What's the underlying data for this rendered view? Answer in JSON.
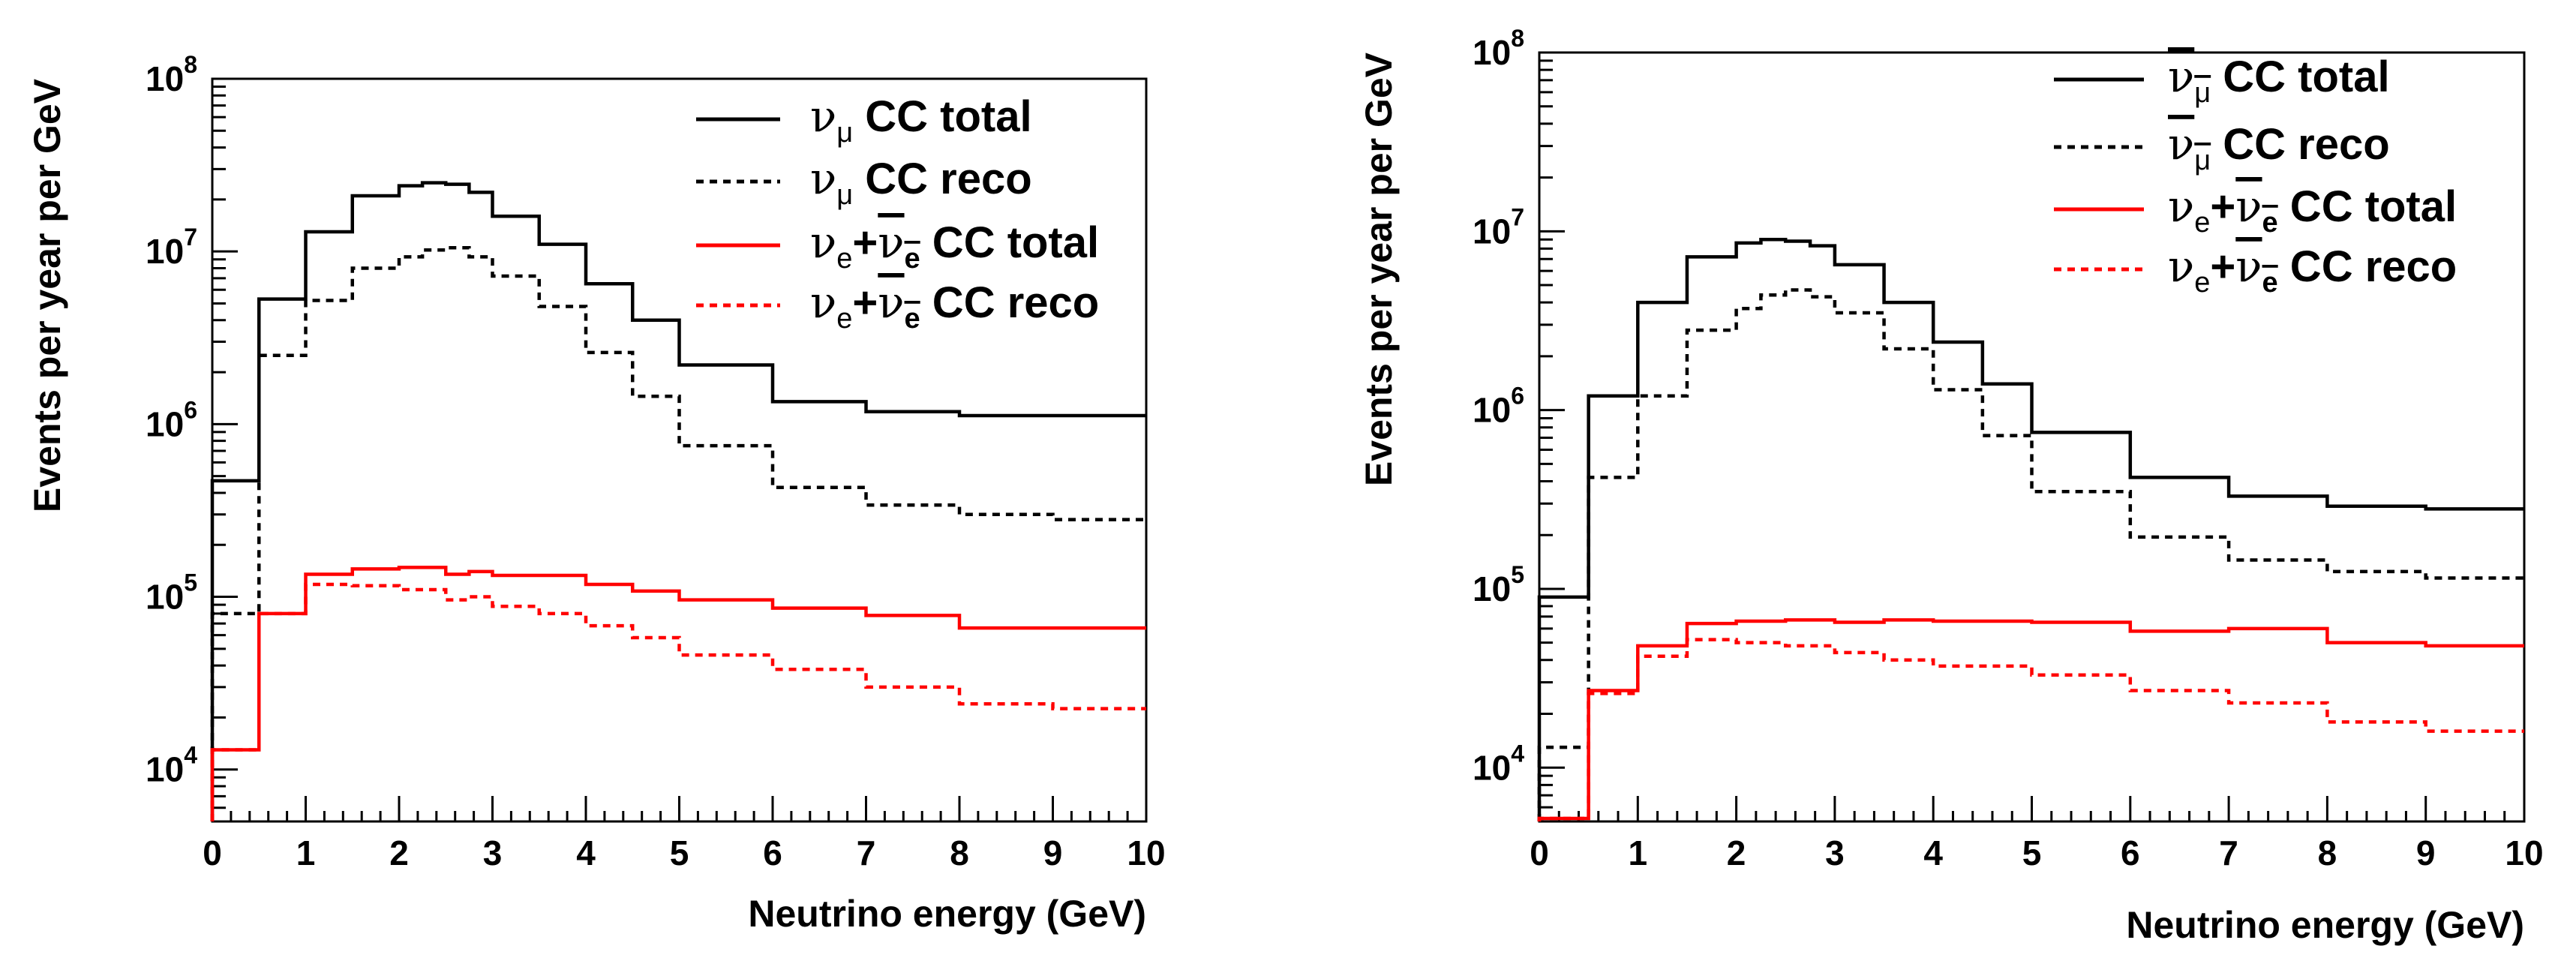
{
  "chart_data": [
    {
      "type": "line",
      "step": true,
      "title": "",
      "xlabel": "Neutrino energy (GeV)",
      "ylabel": "Events per year per GeV",
      "xlim": [
        0,
        10
      ],
      "ylim": [
        5000,
        100000000
      ],
      "yscale": "log",
      "x_ticks": [
        "0",
        "1",
        "2",
        "3",
        "4",
        "5",
        "6",
        "7",
        "8",
        "9",
        "10"
      ],
      "y_ticks": [
        {
          "base": "10",
          "exp": "4",
          "value": 10000
        },
        {
          "base": "10",
          "exp": "5",
          "value": 100000
        },
        {
          "base": "10",
          "exp": "6",
          "value": 1000000
        },
        {
          "base": "10",
          "exp": "7",
          "value": 10000000
        },
        {
          "base": "10",
          "exp": "8",
          "value": 100000000
        }
      ],
      "legend_position": "top-right",
      "series": [
        {
          "legend": {
            "sym": "ν",
            "sub": "μ",
            "rest": " CC total"
          },
          "color": "#000000",
          "dash": false,
          "edges": [
            0,
            0.5,
            1,
            1.5,
            2,
            2.25,
            2.5,
            2.75,
            3,
            3.5,
            4,
            4.5,
            5,
            6,
            7,
            8,
            10
          ],
          "values": [
            470000,
            5300000,
            13000000,
            21000000,
            24000000,
            25000000,
            24500000,
            22000000,
            16000000,
            11000000,
            6500000,
            4000000,
            2200000,
            1350000,
            1180000,
            1120000
          ]
        },
        {
          "legend": {
            "sym": "ν",
            "sub": "μ",
            "rest": " CC reco"
          },
          "color": "#000000",
          "dash": true,
          "edges": [
            0,
            0.5,
            1,
            1.5,
            2,
            2.25,
            2.5,
            2.75,
            3,
            3.5,
            4,
            4.5,
            5,
            6,
            7,
            8,
            9,
            10
          ],
          "values": [
            80000,
            2500000,
            5200000,
            8000000,
            9300000,
            10200000,
            10500000,
            9300000,
            7200000,
            4800000,
            2600000,
            1450000,
            750000,
            430000,
            340000,
            300000,
            280000
          ]
        },
        {
          "legend": {
            "sym": "ν",
            "sub": "e",
            "plus": "+",
            "sym2": "ν",
            "sub2": "e",
            "rest": " CC total"
          },
          "color": "#ff0000",
          "dash": false,
          "edges": [
            0,
            0.5,
            1,
            1.5,
            2,
            2.5,
            2.75,
            3,
            3.5,
            4,
            4.5,
            5,
            6,
            7,
            8,
            10
          ],
          "values": [
            13000,
            80000,
            135000,
            145000,
            148000,
            135000,
            140000,
            133000,
            133000,
            118000,
            108000,
            96000,
            86000,
            78000,
            66000
          ]
        },
        {
          "legend": {
            "sym": "ν",
            "sub": "e",
            "plus": "+",
            "sym2": "ν",
            "sub2": "e",
            "rest": " CC reco"
          },
          "color": "#ff0000",
          "dash": true,
          "edges": [
            0,
            0.5,
            1,
            1.5,
            2,
            2.5,
            2.75,
            3,
            3.5,
            4,
            4.5,
            5,
            6,
            7,
            8,
            9,
            10
          ],
          "values": [
            13000,
            80000,
            118000,
            116000,
            110000,
            96000,
            100000,
            88000,
            80000,
            68000,
            58000,
            46000,
            38000,
            30000,
            24000,
            22500
          ]
        }
      ]
    },
    {
      "type": "line",
      "step": true,
      "title": "",
      "xlabel": "Neutrino energy (GeV)",
      "ylabel": "Events per year per GeV",
      "xlim": [
        0,
        10
      ],
      "ylim": [
        5000,
        100000000
      ],
      "yscale": "log",
      "x_ticks": [
        "0",
        "1",
        "2",
        "3",
        "4",
        "5",
        "6",
        "7",
        "8",
        "9",
        "10"
      ],
      "y_ticks": [
        {
          "base": "10",
          "exp": "4",
          "value": 10000
        },
        {
          "base": "10",
          "exp": "5",
          "value": 100000
        },
        {
          "base": "10",
          "exp": "6",
          "value": 1000000
        },
        {
          "base": "10",
          "exp": "7",
          "value": 10000000
        },
        {
          "base": "10",
          "exp": "8",
          "value": 100000000
        }
      ],
      "legend_position": "top-right",
      "series": [
        {
          "legend": {
            "sym": "ν",
            "sub": "μ",
            "bar": true,
            "rest": " CC total"
          },
          "color": "#000000",
          "dash": false,
          "edges": [
            0,
            0.5,
            1,
            1.5,
            2,
            2.25,
            2.5,
            2.75,
            3,
            3.5,
            4,
            4.5,
            5,
            6,
            7,
            8,
            9,
            10
          ],
          "values": [
            90000,
            1200000,
            4000000,
            7200000,
            8600000,
            9000000,
            8800000,
            8300000,
            6500000,
            4000000,
            2400000,
            1400000,
            750000,
            420000,
            330000,
            290000,
            280000
          ]
        },
        {
          "legend": {
            "sym": "ν",
            "sub": "μ",
            "bar": true,
            "rest": " CC reco"
          },
          "color": "#000000",
          "dash": true,
          "edges": [
            0,
            0.5,
            1,
            1.5,
            2,
            2.25,
            2.5,
            2.75,
            3,
            3.5,
            4,
            4.5,
            5,
            6,
            7,
            8,
            9,
            10
          ],
          "values": [
            13000,
            420000,
            1200000,
            2800000,
            3700000,
            4400000,
            4700000,
            4300000,
            3500000,
            2200000,
            1300000,
            720000,
            350000,
            195000,
            145000,
            125000,
            115000
          ]
        },
        {
          "legend": {
            "sym": "ν",
            "sub": "e",
            "plus": "+",
            "sym2": "ν",
            "sub2": "e",
            "rest": " CC total"
          },
          "color": "#ff0000",
          "dash": false,
          "edges": [
            0,
            0.5,
            1,
            1.5,
            2,
            2.5,
            3,
            3.5,
            4,
            5,
            6,
            7,
            8,
            9,
            10
          ],
          "values": [
            5200,
            27000,
            48000,
            64000,
            66000,
            67000,
            65000,
            67000,
            66000,
            65000,
            58000,
            60000,
            50000,
            48000
          ]
        },
        {
          "legend": {
            "sym": "ν",
            "sub": "e",
            "plus": "+",
            "sym2": "ν",
            "sub2": "e",
            "rest": " CC reco"
          },
          "color": "#ff0000",
          "dash": true,
          "edges": [
            0,
            0.5,
            1,
            1.5,
            2,
            2.5,
            3,
            3.5,
            4,
            5,
            6,
            7,
            8,
            9,
            10
          ],
          "values": [
            5200,
            26000,
            42000,
            52000,
            50000,
            48000,
            44000,
            40000,
            37000,
            33000,
            27000,
            23000,
            18000,
            16000
          ]
        }
      ]
    }
  ]
}
